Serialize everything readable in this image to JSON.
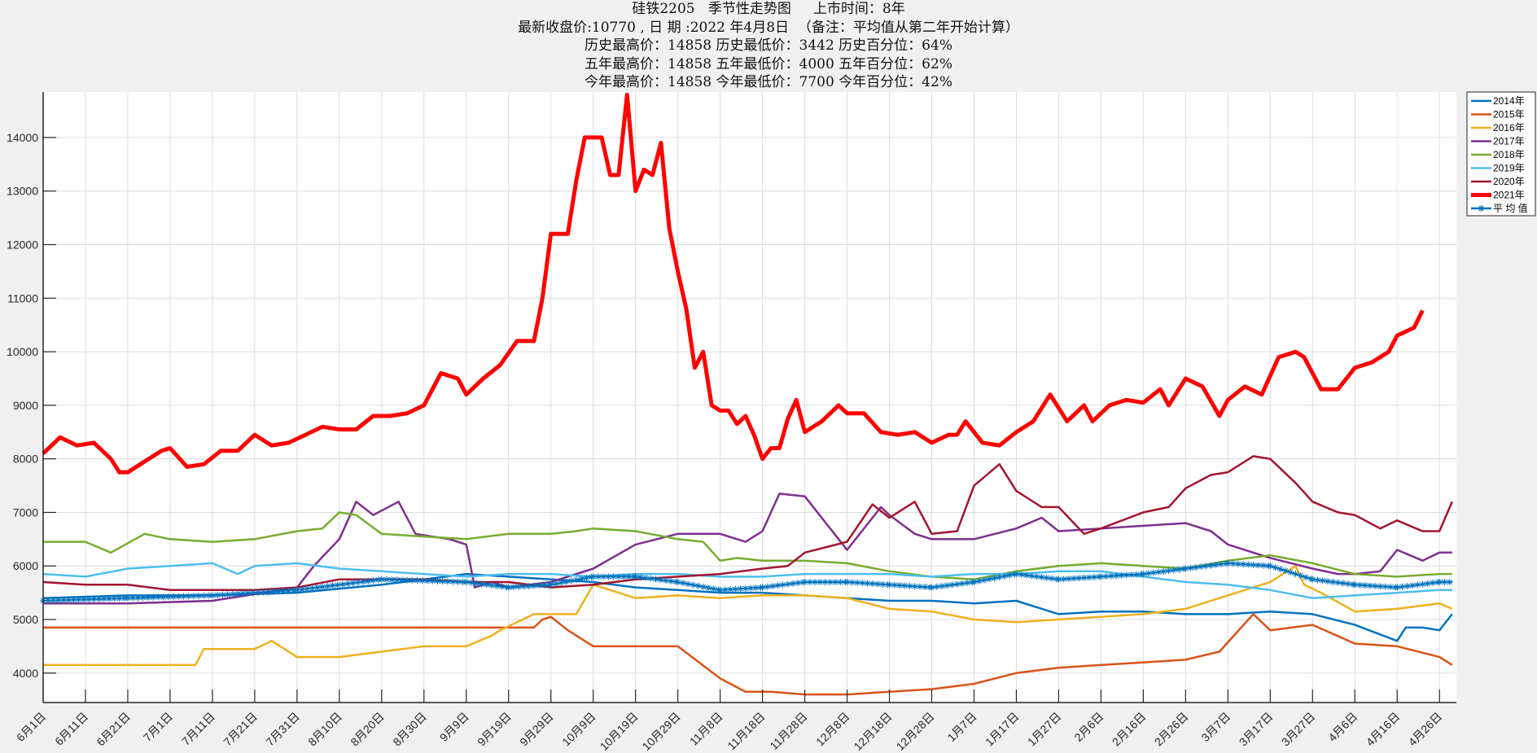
{
  "header": {
    "line1": "硅铁2205   季节性走势图     上市时间：8年",
    "line2": "最新收盘价:10770 , 日 期 :2022 年4月8日  （备注：平均值从第二年开始计算）",
    "line3": "历史最高价：14858 历史最低价：3442 历史百分位：64%",
    "line4": "五年最高价：14858 五年最低价：4000 五年百分位：62%",
    "line5": "今年最高价：14858 今年最低价：7700 今年百分位：42%"
  },
  "chart_data": {
    "type": "line",
    "title": "硅铁2205 季节性走势图",
    "xlabel": "",
    "ylabel": "",
    "ylim": [
      3450,
      14850
    ],
    "grid": true,
    "legend_position": "outside-right-top",
    "x_tick_labels": [
      "6月1日",
      "6月11日",
      "6月21日",
      "7月1日",
      "7月11日",
      "7月21日",
      "7月31日",
      "8月10日",
      "8月20日",
      "8月30日",
      "9月9日",
      "9月19日",
      "9月29日",
      "10月9日",
      "10月19日",
      "10月29日",
      "11月8日",
      "11月18日",
      "11月28日",
      "12月8日",
      "12月18日",
      "12月28日",
      "1月7日",
      "1月17日",
      "1月27日",
      "2月6日",
      "2月16日",
      "2月26日",
      "3月7日",
      "3月17日",
      "3月27日",
      "4月6日",
      "4月16日",
      "4月26日"
    ],
    "y_ticks": [
      4000,
      5000,
      6000,
      7000,
      8000,
      9000,
      10000,
      11000,
      12000,
      13000,
      14000
    ],
    "x_day_span": 334,
    "series": [
      {
        "name": "2014年",
        "color": "#0072BD",
        "width": 2.5,
        "days": [
          0,
          20,
          40,
          60,
          80,
          100,
          110,
          120,
          130,
          140,
          150,
          160,
          170,
          180,
          190,
          200,
          210,
          220,
          230,
          240,
          250,
          260,
          270,
          280,
          290,
          300,
          310,
          320,
          322,
          326,
          330,
          333
        ],
        "values": [
          5400,
          5450,
          5450,
          5500,
          5650,
          5850,
          5800,
          5750,
          5700,
          5600,
          5550,
          5500,
          5500,
          5450,
          5400,
          5350,
          5350,
          5300,
          5350,
          5100,
          5150,
          5150,
          5100,
          5100,
          5150,
          5100,
          4900,
          4600,
          4850,
          4850,
          4800,
          5100
        ]
      },
      {
        "name": "2015年",
        "color": "#D95319",
        "width": 2.5,
        "days": [
          0,
          40,
          80,
          100,
          116,
          118,
          120,
          124,
          130,
          140,
          150,
          160,
          166,
          172,
          180,
          190,
          200,
          210,
          220,
          230,
          240,
          250,
          260,
          270,
          278,
          282,
          286,
          290,
          300,
          310,
          320,
          330,
          333
        ],
        "values": [
          4850,
          4850,
          4850,
          4850,
          4850,
          5000,
          5050,
          4800,
          4500,
          4500,
          4500,
          3900,
          3650,
          3650,
          3600,
          3600,
          3650,
          3700,
          3800,
          4000,
          4100,
          4150,
          4200,
          4250,
          4400,
          4750,
          5100,
          4800,
          4900,
          4550,
          4500,
          4300,
          4150
        ]
      },
      {
        "name": "2016年",
        "color": "#EDB120",
        "width": 2.5,
        "days": [
          0,
          36,
          38,
          50,
          54,
          60,
          70,
          80,
          90,
          100,
          106,
          108,
          116,
          120,
          126,
          130,
          140,
          150,
          160,
          170,
          180,
          190,
          200,
          210,
          220,
          230,
          240,
          250,
          260,
          270,
          280,
          290,
          296,
          298,
          302,
          310,
          320,
          330,
          333
        ],
        "values": [
          4150,
          4150,
          4450,
          4450,
          4600,
          4300,
          4300,
          4400,
          4500,
          4500,
          4700,
          4800,
          5100,
          5100,
          5100,
          5650,
          5400,
          5450,
          5400,
          5450,
          5450,
          5400,
          5200,
          5150,
          5000,
          4950,
          5000,
          5050,
          5100,
          5200,
          5450,
          5700,
          6000,
          5650,
          5500,
          5150,
          5200,
          5300,
          5200
        ]
      },
      {
        "name": "2017年",
        "color": "#7E2F8E",
        "width": 2.5,
        "days": [
          0,
          20,
          40,
          60,
          64,
          70,
          74,
          78,
          84,
          88,
          96,
          100,
          102,
          106,
          110,
          120,
          130,
          140,
          150,
          160,
          166,
          170,
          174,
          180,
          190,
          198,
          200,
          206,
          210,
          220,
          230,
          236,
          240,
          250,
          260,
          270,
          276,
          280,
          290,
          300,
          306,
          310,
          316,
          320,
          326,
          330,
          333
        ],
        "values": [
          5300,
          5300,
          5350,
          5600,
          6000,
          6500,
          7200,
          6950,
          7200,
          6600,
          6500,
          6400,
          5600,
          5700,
          5600,
          5700,
          5950,
          6400,
          6600,
          6600,
          6450,
          6650,
          7350,
          7300,
          6300,
          7100,
          6950,
          6600,
          6500,
          6500,
          6700,
          6900,
          6650,
          6700,
          6750,
          6800,
          6650,
          6400,
          6150,
          5950,
          5850,
          5850,
          5900,
          6300,
          6100,
          6250,
          6250
        ]
      },
      {
        "name": "2018年",
        "color": "#77AC30",
        "width": 2.5,
        "days": [
          0,
          10,
          16,
          24,
          30,
          40,
          50,
          60,
          66,
          70,
          74,
          80,
          90,
          100,
          110,
          120,
          126,
          130,
          140,
          150,
          156,
          160,
          164,
          170,
          180,
          190,
          200,
          210,
          220,
          230,
          240,
          250,
          260,
          270,
          280,
          290,
          300,
          310,
          320,
          330,
          333
        ],
        "values": [
          6450,
          6450,
          6250,
          6600,
          6500,
          6450,
          6500,
          6650,
          6700,
          7000,
          6950,
          6600,
          6550,
          6500,
          6600,
          6600,
          6650,
          6700,
          6650,
          6500,
          6450,
          6100,
          6150,
          6100,
          6100,
          6050,
          5900,
          5800,
          5750,
          5900,
          6000,
          6050,
          6000,
          5950,
          6100,
          6200,
          6050,
          5850,
          5800,
          5850,
          5850
        ]
      },
      {
        "name": "2019年",
        "color": "#4DBEEE",
        "width": 2.5,
        "days": [
          0,
          10,
          20,
          30,
          40,
          46,
          50,
          60,
          70,
          80,
          90,
          100,
          110,
          120,
          130,
          140,
          150,
          160,
          170,
          180,
          190,
          200,
          210,
          220,
          230,
          240,
          250,
          260,
          270,
          280,
          290,
          300,
          310,
          320,
          330,
          333
        ],
        "values": [
          5850,
          5800,
          5950,
          6000,
          6050,
          5850,
          6000,
          6050,
          5950,
          5900,
          5850,
          5800,
          5850,
          5850,
          5800,
          5850,
          5850,
          5800,
          5800,
          5850,
          5850,
          5850,
          5800,
          5850,
          5850,
          5900,
          5900,
          5800,
          5700,
          5650,
          5550,
          5400,
          5450,
          5500,
          5550,
          5550
        ]
      },
      {
        "name": "2020年",
        "color": "#A2142F",
        "width": 2.5,
        "days": [
          0,
          10,
          20,
          30,
          40,
          50,
          60,
          70,
          80,
          90,
          100,
          110,
          120,
          130,
          140,
          150,
          160,
          170,
          176,
          180,
          190,
          196,
          200,
          206,
          210,
          216,
          220,
          226,
          230,
          236,
          240,
          246,
          250,
          260,
          266,
          270,
          276,
          280,
          286,
          290,
          296,
          300,
          306,
          310,
          316,
          320,
          326,
          330,
          333
        ],
        "values": [
          5700,
          5650,
          5650,
          5550,
          5550,
          5550,
          5600,
          5750,
          5750,
          5750,
          5700,
          5700,
          5600,
          5650,
          5750,
          5800,
          5850,
          5950,
          6000,
          6250,
          6450,
          7150,
          6900,
          7200,
          6600,
          6650,
          7500,
          7900,
          7400,
          7100,
          7100,
          6600,
          6700,
          7000,
          7100,
          7450,
          7700,
          7750,
          8050,
          8000,
          7550,
          7200,
          7000,
          6950,
          6700,
          6850,
          6650,
          6650,
          7200
        ]
      },
      {
        "name": "2021年",
        "color": "#FF0000",
        "width": 5,
        "days": [
          0,
          4,
          8,
          12,
          16,
          18,
          20,
          24,
          28,
          30,
          34,
          38,
          42,
          46,
          50,
          54,
          58,
          62,
          66,
          70,
          74,
          78,
          82,
          86,
          90,
          94,
          98,
          100,
          104,
          108,
          112,
          116,
          118,
          120,
          124,
          126,
          128,
          132,
          134,
          136,
          138,
          140,
          142,
          144,
          146,
          148,
          150,
          152,
          154,
          156,
          158,
          160,
          162,
          164,
          166,
          168,
          170,
          172,
          174,
          176,
          178,
          180,
          184,
          188,
          190,
          194,
          198,
          202,
          206,
          210,
          214,
          216,
          218,
          222,
          226,
          230,
          234,
          238,
          242,
          246,
          248,
          252,
          256,
          260,
          264,
          266,
          270,
          274,
          278,
          280,
          284,
          288,
          292,
          296,
          298,
          302,
          306,
          310,
          314,
          318,
          320,
          324,
          326
        ],
        "values": [
          8100,
          8400,
          8250,
          8300,
          8000,
          7750,
          7750,
          7950,
          8150,
          8200,
          7850,
          7900,
          8150,
          8150,
          8450,
          8250,
          8300,
          8450,
          8600,
          8550,
          8550,
          8800,
          8800,
          8850,
          9000,
          9600,
          9500,
          9200,
          9500,
          9750,
          10200,
          10200,
          11000,
          12200,
          12200,
          13200,
          14000,
          14000,
          13300,
          13300,
          14800,
          13000,
          13400,
          13300,
          13900,
          12300,
          11500,
          10800,
          9700,
          10000,
          9000,
          8900,
          8900,
          8650,
          8800,
          8450,
          8000,
          8200,
          8200,
          8750,
          9100,
          8500,
          8700,
          9000,
          8850,
          8850,
          8500,
          8450,
          8500,
          8300,
          8450,
          8450,
          8700,
          8300,
          8250,
          8500,
          8700,
          9200,
          8700,
          9000,
          8700,
          9000,
          9100,
          9050,
          9300,
          9000,
          9500,
          9350,
          8800,
          9100,
          9350,
          9200,
          9900,
          10000,
          9900,
          9300,
          9300,
          9700,
          9800,
          10000,
          10300,
          10450,
          10770
        ]
      },
      {
        "name": "平均值",
        "color": "#0072BD",
        "width": 2,
        "marker": "asterisk",
        "days": [
          0,
          20,
          40,
          60,
          80,
          100,
          110,
          120,
          130,
          140,
          150,
          160,
          170,
          180,
          190,
          200,
          210,
          220,
          230,
          240,
          250,
          260,
          270,
          280,
          290,
          300,
          310,
          320,
          330,
          333
        ],
        "values": [
          5350,
          5400,
          5450,
          5550,
          5750,
          5700,
          5600,
          5650,
          5800,
          5800,
          5700,
          5550,
          5600,
          5700,
          5700,
          5650,
          5600,
          5700,
          5850,
          5750,
          5800,
          5850,
          5950,
          6050,
          6000,
          5750,
          5650,
          5600,
          5700,
          5700
        ]
      }
    ]
  }
}
